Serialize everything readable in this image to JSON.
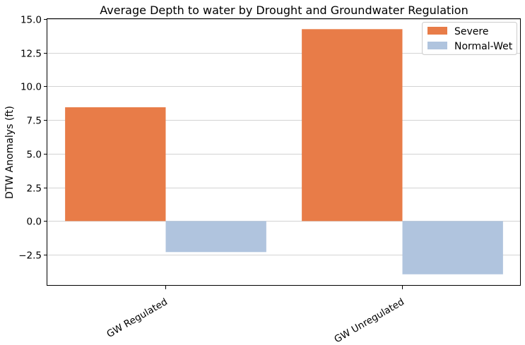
{
  "chart_data": {
    "type": "bar",
    "title": "Average Depth to water by Drought and Groundwater Regulation",
    "xlabel": "",
    "ylabel": "DTW Anomalys (ft)",
    "categories": [
      "GW Regulated",
      "GW Unregulated"
    ],
    "series": [
      {
        "name": "Severe",
        "color": "#e87c48",
        "values": [
          8.45,
          14.25
        ]
      },
      {
        "name": "Normal-Wet",
        "color": "#b0c4de",
        "values": [
          -2.3,
          -3.95
        ]
      }
    ],
    "ylim": [
      -4.8,
      15.0
    ],
    "yticks": [
      -2.5,
      0.0,
      2.5,
      5.0,
      7.5,
      10.0,
      12.5,
      15.0
    ],
    "ytick_labels": [
      "−2.5",
      "0.0",
      "2.5",
      "5.0",
      "7.5",
      "10.0",
      "12.5",
      "15.0"
    ],
    "grid": "horizontal",
    "legend_position": "top-right"
  }
}
